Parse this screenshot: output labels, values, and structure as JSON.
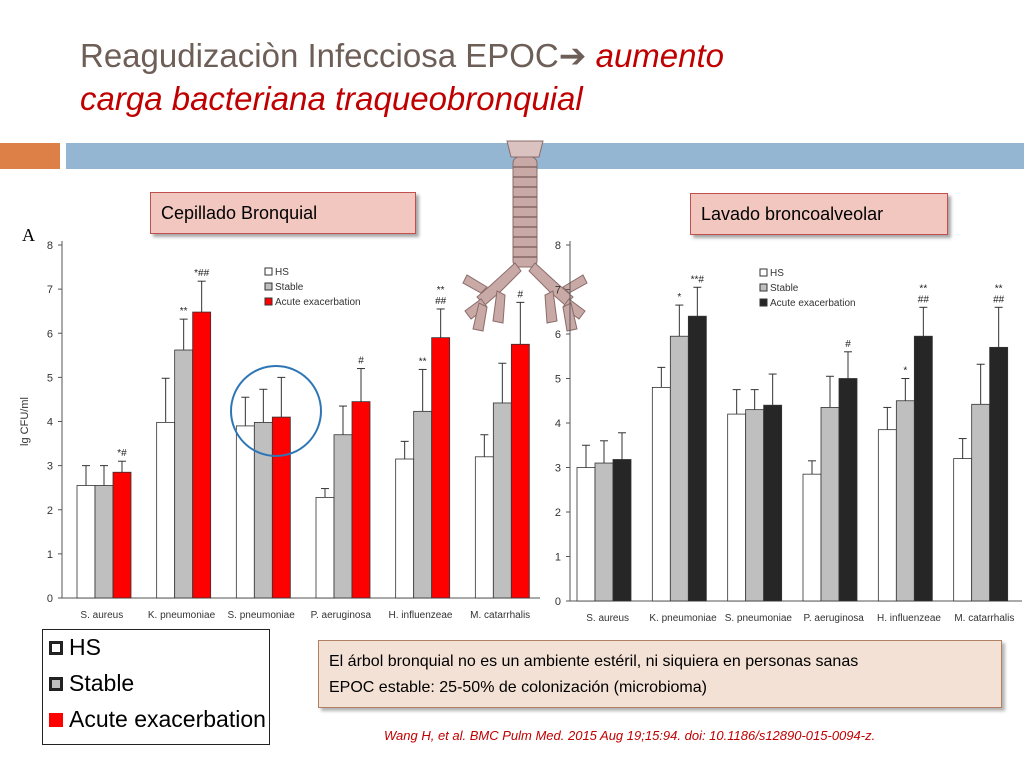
{
  "slide": {
    "title_main": "Reagudizaciòn Infecciosa EPOC",
    "title_arrow": "➔",
    "title_italic_1": " aumento",
    "title_italic_2": "carga bacteriana traqueobronquial",
    "label_left": "Cepillado Bronquial",
    "label_right": "Lavado broncoalveolar",
    "panel_letter": "A",
    "note_line_1": "El árbol bronquial no es un ambiente estéril, ni siquiera en personas sanas",
    "note_line_2": "EPOC estable: 25-50% de colonización (microbioma)",
    "citation": "Wang H, et al. BMC Pulm Med. 2015 Aug 19;15:94. doi: 10.1186/s12890-015-0094-z.",
    "legend_big": [
      {
        "label": "HS",
        "color": "#ffffff"
      },
      {
        "label": "Stable",
        "color": "#bfbfbf"
      },
      {
        "label": "Acute exacerbation",
        "color": "#ff0000"
      }
    ],
    "colors": {
      "accent_red": "#c00000",
      "orange": "#dd8047",
      "blue": "#94b6d2",
      "circle": "#2e75b6"
    }
  },
  "chart_data": [
    {
      "type": "bar",
      "panel": "Cepillado Bronquial",
      "ylabel": "lg CFU/ml",
      "ylim": [
        0,
        8
      ],
      "yticks": [
        "0",
        "1",
        "2",
        "3",
        "4",
        "5",
        "6",
        "7",
        "8"
      ],
      "categories": [
        "S. aureus",
        "K. pneumoniae",
        "S. pneumoniae",
        "P. aeruginosa",
        "H. influenzeae",
        "M. catarrhalis"
      ],
      "series": [
        {
          "name": "HS",
          "color": "#ffffff",
          "values": [
            2.55,
            3.98,
            3.9,
            2.28,
            3.15,
            3.2
          ],
          "errors": [
            0.45,
            1.0,
            0.65,
            0.2,
            0.4,
            0.5
          ]
        },
        {
          "name": "Stable",
          "color": "#bfbfbf",
          "values": [
            2.55,
            5.62,
            3.98,
            3.7,
            4.23,
            4.42
          ],
          "errors": [
            0.45,
            0.7,
            0.75,
            0.65,
            0.95,
            0.9
          ]
        },
        {
          "name": "Acute exacerbation",
          "color": "#ff0000",
          "values": [
            2.85,
            6.48,
            4.1,
            4.45,
            5.9,
            5.75
          ],
          "errors": [
            0.25,
            0.7,
            0.9,
            0.75,
            0.65,
            0.95
          ]
        }
      ],
      "annotations": [
        {
          "category": 0,
          "series": 2,
          "text": "*#"
        },
        {
          "category": 1,
          "series": 1,
          "text": "**"
        },
        {
          "category": 1,
          "series": 2,
          "text": "*##"
        },
        {
          "category": 3,
          "series": 2,
          "text": "#"
        },
        {
          "category": 4,
          "series": 1,
          "text": "**"
        },
        {
          "category": 4,
          "series": 2,
          "text": "**\n##"
        },
        {
          "category": 5,
          "series": 2,
          "text": "#"
        }
      ],
      "legend": [
        "HS",
        "Stable",
        "Acute exacerbation"
      ],
      "legend_position": "top-right"
    },
    {
      "type": "bar",
      "panel": "Lavado broncoalveolar",
      "ylabel": "",
      "ylim": [
        0,
        8
      ],
      "yticks": [
        "0",
        "1",
        "2",
        "3",
        "4",
        "5",
        "6",
        "7",
        "8"
      ],
      "categories": [
        "S. aureus",
        "K. pneumoniae",
        "S. pneumoniae",
        "P. aeruginosa",
        "H. influenzeae",
        "M. catarrhalis"
      ],
      "series": [
        {
          "name": "HS",
          "color": "#ffffff",
          "values": [
            3.0,
            4.8,
            4.2,
            2.85,
            3.85,
            3.2
          ],
          "errors": [
            0.5,
            0.45,
            0.55,
            0.3,
            0.5,
            0.45
          ]
        },
        {
          "name": "Stable",
          "color": "#bfbfbf",
          "values": [
            3.1,
            5.95,
            4.3,
            4.35,
            4.5,
            4.42
          ],
          "errors": [
            0.5,
            0.7,
            0.45,
            0.7,
            0.5,
            0.9
          ]
        },
        {
          "name": "Acute exacerbation",
          "color": "#262626",
          "values": [
            3.18,
            6.4,
            4.4,
            5.0,
            5.95,
            5.7
          ],
          "errors": [
            0.6,
            0.65,
            0.7,
            0.6,
            0.65,
            0.9
          ]
        }
      ],
      "annotations": [
        {
          "category": 1,
          "series": 1,
          "text": "*"
        },
        {
          "category": 1,
          "series": 2,
          "text": "**#"
        },
        {
          "category": 3,
          "series": 2,
          "text": "#"
        },
        {
          "category": 4,
          "series": 1,
          "text": "*"
        },
        {
          "category": 4,
          "series": 2,
          "text": "**\n##"
        },
        {
          "category": 5,
          "series": 2,
          "text": "**\n##"
        }
      ],
      "legend": [
        "HS",
        "Stable",
        "Acute exacerbation"
      ],
      "legend_position": "top-center"
    }
  ]
}
